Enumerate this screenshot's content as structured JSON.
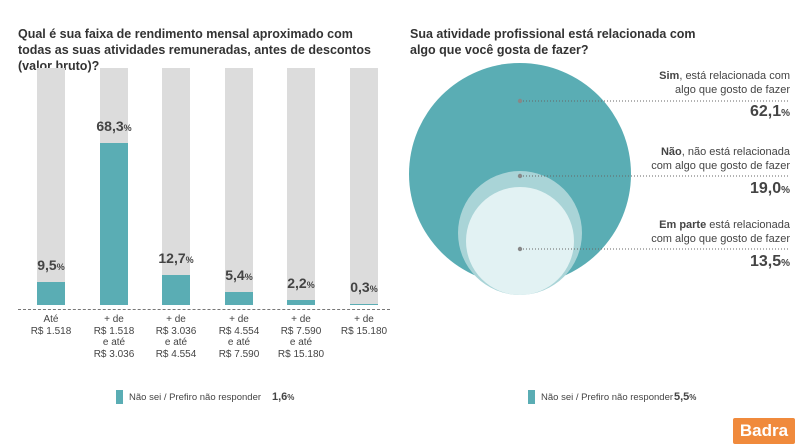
{
  "left_chart": {
    "title": "Qual é sua faixa de rendimento mensal aproximado com todas as suas atividades remuneradas, antes de descontos (valor bruto)?",
    "legend": {
      "label": "Não sei / Prefiro não responder",
      "value": "1,6",
      "unit": "%"
    }
  },
  "right_chart": {
    "title": "Sua atividade profissional está relacionada com algo que você gosta de fazer?",
    "legend": {
      "label": "Não sei / Prefiro não responder",
      "value": "5,5",
      "unit": "%"
    }
  },
  "chart_data": [
    {
      "type": "bar",
      "title": "Qual é sua faixa de rendimento mensal aproximado com todas as suas atividades remuneradas, antes de descontos (valor bruto)?",
      "categories": [
        [
          "Até",
          "R$ 1.518"
        ],
        [
          "+ de",
          "R$ 1.518",
          "e até",
          "R$ 3.036"
        ],
        [
          "+ de",
          "R$ 3.036",
          "e até",
          "R$ 4.554"
        ],
        [
          "+ de",
          "R$ 4.554",
          "e até",
          "R$ 7.590"
        ],
        [
          "+ de",
          "R$ 7.590",
          "e até",
          "R$ 15.180"
        ],
        [
          "+ de",
          "R$ 15.180"
        ]
      ],
      "values": [
        9.5,
        68.3,
        12.7,
        5.4,
        2.2,
        0.3
      ],
      "value_labels": [
        "9,5",
        "68,3",
        "12,7",
        "5,4",
        "2,2",
        "0,3"
      ],
      "unit": "%",
      "ylim": [
        0,
        100
      ],
      "colors": {
        "fill": "#5aadb4",
        "background": "#dcdcdc"
      }
    },
    {
      "type": "bubble",
      "title": "Sua atividade profissional está relacionada com algo que você gosta de fazer?",
      "items": [
        {
          "bold": "Sim",
          "text_line1": ", está relacionada com",
          "text_line2": "algo que gosto de fazer",
          "value": 62.1,
          "value_label": "62,1",
          "color": "#5aadb4"
        },
        {
          "bold": "Não",
          "text_line1": ", não está relacionada",
          "text_line2": "com algo que gosto de fazer",
          "value": 19.0,
          "value_label": "19,0",
          "color": "#a9d4d7"
        },
        {
          "bold": "Em parte",
          "text_line1": " está relacionada",
          "text_line2": "com algo que gosto de fazer",
          "value": 13.5,
          "value_label": "13,5",
          "color": "#e2f2f3"
        }
      ],
      "unit": "%"
    }
  ],
  "logo": {
    "text": "Badra"
  }
}
